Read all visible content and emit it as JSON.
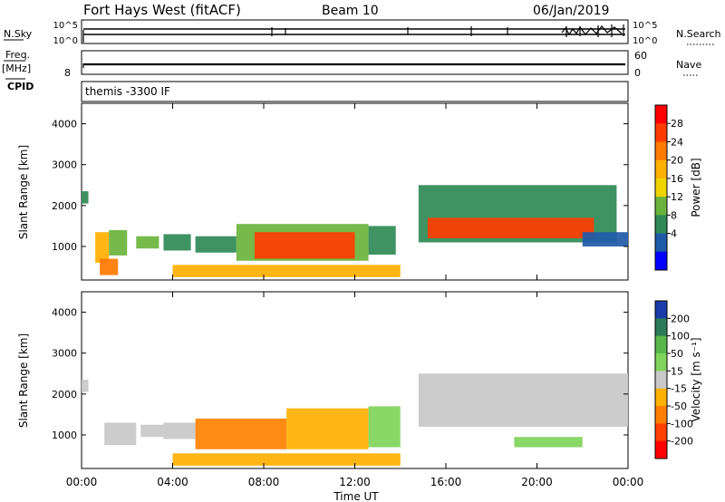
{
  "header": {
    "station": "Fort Hays West (fitACF)",
    "beam": "Beam 10",
    "date": "06/Jan/2019"
  },
  "sky_panel": {
    "left_label": "N.Sky",
    "left_ticks": [
      "10^5",
      "10^0"
    ],
    "right_ticks": [
      "10^5",
      "10^0"
    ],
    "right_label": "N.Search"
  },
  "freq_panel": {
    "left_label_top": "Freq.",
    "left_label_unit": "[MHz]",
    "left_tick": "8",
    "right_ticks": [
      "60",
      "0"
    ],
    "right_label": "Nave"
  },
  "cpid_panel": {
    "left_label": "CPID",
    "program": "themis -3300 IF"
  },
  "chart_data": [
    {
      "type": "heatmap",
      "panel": "power",
      "ylabel": "Slant Range [km]",
      "xlabel": "Time UT",
      "xlim": [
        0,
        24
      ],
      "ylim": [
        180,
        4500
      ],
      "x_ticks": [
        "00:00",
        "04:00",
        "08:00",
        "12:00",
        "16:00",
        "20:00",
        "00:00"
      ],
      "y_ticks": [
        "1000",
        "2000",
        "3000",
        "4000"
      ],
      "colorbar_label": "Power [dB]",
      "colorbar_ticks": [
        "28",
        "24",
        "20",
        "16",
        "12",
        "8",
        "4"
      ],
      "colorbar_colors": [
        "#ff0000",
        "#ff3c00",
        "#ff7a00",
        "#ffb000",
        "#f0d400",
        "#6ab43c",
        "#2f8a56",
        "#1f5aa8",
        "#0000ff"
      ],
      "echo_regions": [
        {
          "t0": 0.0,
          "t1": 0.3,
          "r0": 2050,
          "r1": 2350,
          "level": 6
        },
        {
          "t0": 0.6,
          "t1": 1.2,
          "r0": 600,
          "r1": 1350,
          "level": 3
        },
        {
          "t0": 1.2,
          "t1": 2.0,
          "r0": 780,
          "r1": 1400,
          "level": 5
        },
        {
          "t0": 0.8,
          "t1": 1.6,
          "r0": 300,
          "r1": 700,
          "level": 2
        },
        {
          "t0": 2.4,
          "t1": 3.4,
          "r0": 950,
          "r1": 1250,
          "level": 5
        },
        {
          "t0": 3.6,
          "t1": 4.8,
          "r0": 900,
          "r1": 1300,
          "level": 6
        },
        {
          "t0": 5.0,
          "t1": 6.8,
          "r0": 850,
          "r1": 1250,
          "level": 6
        },
        {
          "t0": 6.8,
          "t1": 12.6,
          "r0": 650,
          "r1": 1550,
          "level": 5
        },
        {
          "t0": 7.6,
          "t1": 12.0,
          "r0": 700,
          "r1": 1350,
          "level": 1
        },
        {
          "t0": 12.6,
          "t1": 13.8,
          "r0": 800,
          "r1": 1500,
          "level": 6
        },
        {
          "t0": 14.8,
          "t1": 23.5,
          "r0": 1100,
          "r1": 2500,
          "level": 6
        },
        {
          "t0": 15.2,
          "t1": 22.5,
          "r0": 1200,
          "r1": 1700,
          "level": 1
        },
        {
          "t0": 22.0,
          "t1": 24.0,
          "r0": 1000,
          "r1": 1350,
          "level": 7
        },
        {
          "t0": 4.0,
          "t1": 14.0,
          "r0": 250,
          "r1": 550,
          "level": 3
        }
      ]
    },
    {
      "type": "heatmap",
      "panel": "velocity",
      "ylabel": "Slant Range [km]",
      "xlabel": "Time UT",
      "xlim": [
        0,
        24
      ],
      "ylim": [
        180,
        4500
      ],
      "x_ticks": [
        "00:00",
        "04:00",
        "08:00",
        "12:00",
        "16:00",
        "20:00",
        "00:00"
      ],
      "y_ticks": [
        "1000",
        "2000",
        "3000",
        "4000"
      ],
      "colorbar_label": "Velocity [m s⁻¹]",
      "colorbar_ticks": [
        "200",
        "100",
        "50",
        "15",
        "-15",
        "-50",
        "-100",
        "-200"
      ],
      "colorbar_colors": [
        "#1a3caa",
        "#2d7a5a",
        "#56b84a",
        "#7fd45a",
        "#c8c8c8",
        "#ffb000",
        "#ff8000",
        "#ff4000",
        "#ff0000"
      ],
      "echo_regions": [
        {
          "t0": 0.0,
          "t1": 0.3,
          "r0": 2050,
          "r1": 2350,
          "level": 4
        },
        {
          "t0": 1.0,
          "t1": 2.4,
          "r0": 750,
          "r1": 1300,
          "level": 4
        },
        {
          "t0": 2.6,
          "t1": 3.6,
          "r0": 950,
          "r1": 1250,
          "level": 4
        },
        {
          "t0": 3.6,
          "t1": 5.0,
          "r0": 900,
          "r1": 1300,
          "level": 4
        },
        {
          "t0": 5.0,
          "t1": 9.0,
          "r0": 650,
          "r1": 1400,
          "level": 6
        },
        {
          "t0": 9.0,
          "t1": 12.6,
          "r0": 650,
          "r1": 1650,
          "level": 5
        },
        {
          "t0": 12.6,
          "t1": 14.0,
          "r0": 700,
          "r1": 1700,
          "level": 3
        },
        {
          "t0": 14.8,
          "t1": 24.0,
          "r0": 1200,
          "r1": 2500,
          "level": 4
        },
        {
          "t0": 19.0,
          "t1": 22.0,
          "r0": 700,
          "r1": 950,
          "level": 3
        },
        {
          "t0": 4.0,
          "t1": 14.0,
          "r0": 250,
          "r1": 550,
          "level": 5
        }
      ]
    }
  ]
}
